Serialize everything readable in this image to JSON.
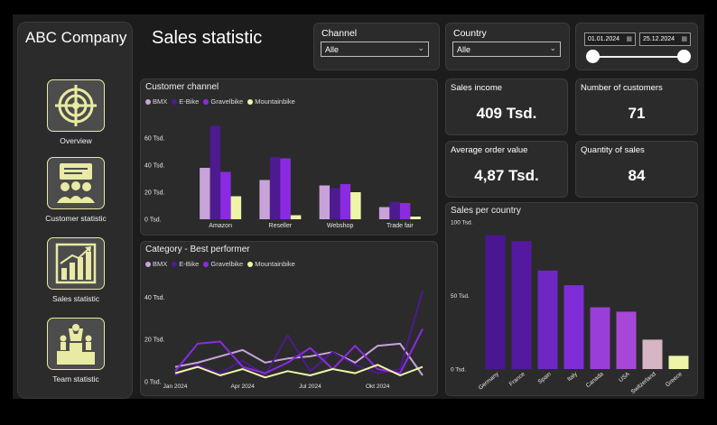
{
  "company": "ABC Company",
  "page_title": "Sales statistic",
  "nav": [
    {
      "label": "Overview",
      "icon": "target-icon"
    },
    {
      "label": "Customer statistic",
      "icon": "audience-icon"
    },
    {
      "label": "Sales statistic",
      "icon": "bar-growth-icon"
    },
    {
      "label": "Team statistic",
      "icon": "podium-icon"
    }
  ],
  "filters": {
    "channel_title": "Channel",
    "channel_value": "Alle",
    "country_title": "Country",
    "country_value": "Alle",
    "date_from": "01.01.2024",
    "date_to": "25.12.2024"
  },
  "kpis": {
    "sales_income": {
      "title": "Sales income",
      "value": "409 Tsd."
    },
    "customers": {
      "title": "Number of customers",
      "value": "71"
    },
    "avg_order": {
      "title": "Average order value",
      "value": "4,87 Tsd."
    },
    "quantity": {
      "title": "Quantity of sales",
      "value": "84"
    }
  },
  "colors": {
    "BMX": "#c7a3d9",
    "E-Bike": "#4d1a8f",
    "Gravelbike": "#8a2be2",
    "Mountainbike": "#eef5a8",
    "accent": "#e9eaa3"
  },
  "legend": [
    "BMX",
    "E-Bike",
    "Gravelbike",
    "Mountainbike"
  ],
  "chart_data": [
    {
      "type": "bar",
      "title": "Customer channel",
      "categories": [
        "Amazon",
        "Reseller",
        "Webshop",
        "Trade fair"
      ],
      "series": [
        {
          "name": "BMX",
          "values": [
            38,
            29,
            25,
            9
          ]
        },
        {
          "name": "E-Bike",
          "values": [
            69,
            46,
            23,
            13
          ]
        },
        {
          "name": "Gravelbike",
          "values": [
            35,
            45,
            26,
            12
          ]
        },
        {
          "name": "Mountainbike",
          "values": [
            17,
            3,
            20,
            2
          ]
        }
      ],
      "yticks": [
        "0 Tsd.",
        "20 Tsd.",
        "40 Tsd.",
        "60 Tsd."
      ],
      "ylim": [
        0,
        70
      ]
    },
    {
      "type": "line",
      "title": "Category - Best performer",
      "x": [
        "Jan 2024",
        "Feb 2024",
        "Mar 2024",
        "Apr 2024",
        "May 2024",
        "Jun 2024",
        "Jul 2024",
        "Aug 2024",
        "Sep 2024",
        "Okt 2024",
        "Nov 2024",
        "Dez 2024"
      ],
      "xticks": [
        "Jan 2024",
        "Apr 2024",
        "Jul 2024",
        "Okt 2024"
      ],
      "series": [
        {
          "name": "BMX",
          "values": [
            7,
            9,
            12,
            15,
            9,
            11,
            12,
            14,
            9,
            17,
            18,
            3
          ]
        },
        {
          "name": "E-Bike",
          "values": [
            3,
            8,
            4,
            10,
            3,
            22,
            5,
            14,
            8,
            4,
            6,
            43
          ]
        },
        {
          "name": "Gravelbike",
          "values": [
            5,
            18,
            19,
            7,
            4,
            9,
            16,
            6,
            17,
            6,
            4,
            25
          ]
        },
        {
          "name": "Mountainbike",
          "values": [
            4,
            7,
            3,
            6,
            2,
            5,
            3,
            6,
            4,
            8,
            3,
            7
          ]
        }
      ],
      "yticks": [
        "0 Tsd.",
        "20 Tsd.",
        "40 Tsd."
      ],
      "ylim": [
        0,
        50
      ]
    },
    {
      "type": "bar",
      "title": "Sales per country",
      "categories": [
        "Germany",
        "France",
        "Spain",
        "Italy",
        "Canada",
        "USA",
        "Switzerland",
        "Greece"
      ],
      "values": [
        91,
        87,
        67,
        57,
        42,
        39,
        20,
        9
      ],
      "colors": [
        "#4b1692",
        "#5419a0",
        "#6e27c3",
        "#7e2dd8",
        "#9a3ed9",
        "#a747d7",
        "#d6b5c4",
        "#eef5a8"
      ],
      "yticks": [
        "0 Tsd.",
        "50 Tsd.",
        "100 Tsd."
      ],
      "ylim": [
        0,
        100
      ]
    }
  ]
}
